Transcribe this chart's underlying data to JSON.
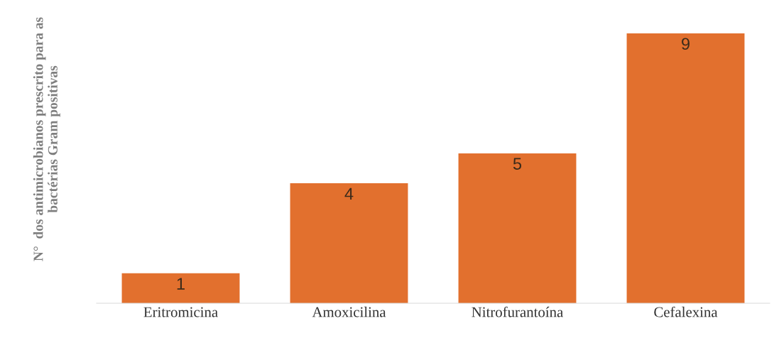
{
  "chart_data": {
    "type": "bar",
    "ylabel": "N°  dos antimicrobianos prescrito para as bactérias Gram positivas",
    "categories": [
      "Eritromicina",
      "Amoxicilina",
      "Nitrofurantoína",
      "Cefalexina"
    ],
    "values": [
      1,
      4,
      5,
      9
    ],
    "color": "#e2702e",
    "tick_labels": "x",
    "data_labels": true,
    "grid": false,
    "legend": false
  }
}
